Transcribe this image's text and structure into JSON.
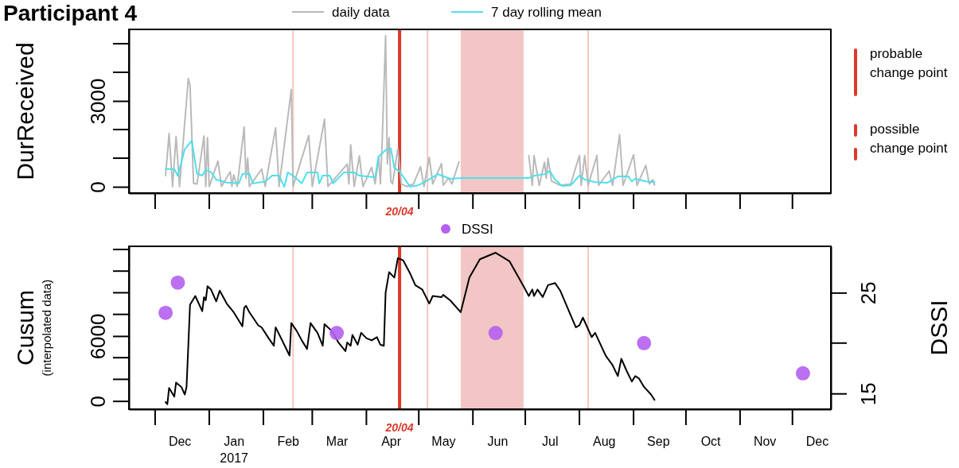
{
  "chart_data": [
    {
      "type": "line",
      "title": "Participant 4",
      "ylabel": "DurReceived",
      "xlim": [
        "2016-11-16",
        "2017-12-23"
      ],
      "ylim": [
        -220,
        5500
      ],
      "yticks": [
        0,
        3000
      ],
      "tick_labels": "y",
      "legend": "top",
      "line_style": "solid",
      "series": [
        {
          "name": "daily data",
          "color": "#bababa",
          "x": [
            "2016-12-07",
            "2016-12-09",
            "2016-12-11",
            "2016-12-13",
            "2016-12-15",
            "2016-12-20",
            "2016-12-21",
            "2016-12-23",
            "2016-12-25",
            "2016-12-29",
            "2016-12-30",
            "2016-12-31",
            "2017-01-01",
            "2017-01-06",
            "2017-01-08",
            "2017-01-13",
            "2017-01-14",
            "2017-01-15",
            "2017-01-17",
            "2017-01-21",
            "2017-01-22",
            "2017-01-23",
            "2017-01-24",
            "2017-01-31",
            "2017-02-02",
            "2017-02-08",
            "2017-02-10",
            "2017-02-17",
            "2017-02-18",
            "2017-02-27",
            "2017-03-01",
            "2017-03-08",
            "2017-03-10",
            "2017-03-21",
            "2017-03-22",
            "2017-03-23",
            "2017-03-25",
            "2017-03-28",
            "2017-03-30",
            "2017-04-04",
            "2017-04-06",
            "2017-04-08",
            "2017-04-09",
            "2017-04-10",
            "2017-04-12",
            "2017-04-13",
            "2017-04-14",
            "2017-04-15",
            "2017-04-16",
            "2017-04-19",
            "2017-04-21",
            "2017-04-24",
            "2017-04-28",
            "2017-05-02",
            "2017-05-04",
            "2017-05-07",
            "2017-05-09",
            "2017-05-14",
            "2017-05-15",
            "2017-05-18",
            "2017-05-20",
            "2017-05-24",
            "2017-06-12",
            "2017-07-03",
            "2017-07-05",
            "2017-07-06",
            "2017-07-09",
            "2017-07-12",
            "2017-07-13",
            "2017-07-14",
            "2017-07-16",
            "2017-07-21",
            "2017-07-27",
            "2017-08-01",
            "2017-08-02",
            "2017-08-04",
            "2017-08-06",
            "2017-08-11",
            "2017-08-12",
            "2017-08-18",
            "2017-08-20",
            "2017-08-24",
            "2017-08-26",
            "2017-09-01",
            "2017-09-03",
            "2017-09-08",
            "2017-09-10",
            "2017-09-12",
            "2017-09-13"
          ],
          "values": [
            390,
            1860,
            10,
            1750,
            10,
            3780,
            3550,
            120,
            100,
            1770,
            10,
            1720,
            10,
            900,
            10,
            530,
            10,
            420,
            10,
            2090,
            300,
            1000,
            10,
            620,
            10,
            2060,
            10,
            3400,
            10,
            1790,
            10,
            2360,
            10,
            790,
            100,
            1470,
            10,
            1080,
            10,
            680,
            100,
            1050,
            100,
            1500,
            5280,
            800,
            1720,
            200,
            100,
            1330,
            100,
            10,
            100,
            700,
            10,
            1030,
            100,
            810,
            50,
            300,
            100,
            870,
            null,
            1090,
            50,
            1090,
            50,
            860,
            300,
            1000,
            200,
            50,
            100,
            1090,
            50,
            1090,
            50,
            1090,
            50,
            550,
            50,
            1820,
            50,
            1120,
            50,
            750,
            100,
            250,
            60
          ]
        },
        {
          "name": "7 day rolling mean",
          "color": "#4fe0ea",
          "x": [
            "2016-12-07",
            "2016-12-12",
            "2016-12-14",
            "2016-12-18",
            "2016-12-22",
            "2016-12-25",
            "2016-12-28",
            "2016-12-30",
            "2017-01-02",
            "2017-01-05",
            "2017-01-11",
            "2017-01-18",
            "2017-01-20",
            "2017-01-24",
            "2017-01-26",
            "2017-02-02",
            "2017-02-06",
            "2017-02-10",
            "2017-02-13",
            "2017-02-15",
            "2017-02-18",
            "2017-02-23",
            "2017-02-26",
            "2017-03-04",
            "2017-03-05",
            "2017-03-07",
            "2017-03-11",
            "2017-03-13",
            "2017-03-19",
            "2017-03-25",
            "2017-03-28",
            "2017-04-06",
            "2017-04-08",
            "2017-04-12",
            "2017-04-15",
            "2017-04-17",
            "2017-04-20",
            "2017-04-26",
            "2017-05-01",
            "2017-05-06",
            "2017-05-12",
            "2017-05-19",
            "2017-05-26",
            "2017-07-03",
            "2017-07-07",
            "2017-07-13",
            "2017-07-15",
            "2017-07-18",
            "2017-07-22",
            "2017-07-27",
            "2017-08-01",
            "2017-08-04",
            "2017-08-10",
            "2017-08-17",
            "2017-08-23",
            "2017-08-29",
            "2017-08-31",
            "2017-09-02",
            "2017-09-08",
            "2017-09-13"
          ],
          "values": [
            620,
            620,
            380,
            1320,
            1610,
            460,
            390,
            590,
            520,
            250,
            150,
            120,
            450,
            450,
            120,
            180,
            390,
            390,
            0,
            500,
            390,
            120,
            500,
            500,
            120,
            390,
            390,
            120,
            500,
            500,
            390,
            330,
            1060,
            1280,
            1340,
            650,
            540,
            0,
            60,
            220,
            440,
            280,
            310,
            310,
            400,
            450,
            560,
            250,
            30,
            50,
            390,
            250,
            160,
            140,
            360,
            360,
            190,
            280,
            190,
            160
          ]
        }
      ],
      "ref_lines": [
        {
          "axis": "x",
          "value": "2017-04-20",
          "label": "20/04",
          "color": "#d93a2b"
        },
        {
          "axis": "x",
          "value": "2017-02-18",
          "color": "#f5c6c3"
        },
        {
          "axis": "x",
          "value": "2017-05-06",
          "color": "#f5c6c3"
        },
        {
          "axis": "x",
          "value": "2017-08-06",
          "color": "#f5c6c3"
        }
      ],
      "bands": [
        {
          "axis": "x",
          "from": "2017-05-25",
          "to": "2017-06-30",
          "color": "#f2c6c4"
        }
      ],
      "annotations": [
        "probable change point",
        "possible change point"
      ]
    },
    {
      "type": "line",
      "ylabel": "Cusum\n(interpolated data)",
      "y2label": "DSSI",
      "xlim": [
        "2016-11-16",
        "2017-12-23"
      ],
      "ylim": [
        -760,
        14290
      ],
      "yticks": [
        0,
        6000
      ],
      "y2lim": [
        13.44,
        29.6
      ],
      "y2ticks": [
        15,
        25
      ],
      "xticks": [
        {
          "value": "2016-12-15",
          "label": "Dec"
        },
        {
          "value": "2017-01-15",
          "label": "Jan\n2017"
        },
        {
          "value": "2017-02-15",
          "label": "Feb"
        },
        {
          "value": "2017-03-15",
          "label": "Mar"
        },
        {
          "value": "2017-04-15",
          "label": "Apr"
        },
        {
          "value": "2017-05-15",
          "label": "May"
        },
        {
          "value": "2017-06-15",
          "label": "Jun"
        },
        {
          "value": "2017-07-15",
          "label": "Jul"
        },
        {
          "value": "2017-08-15",
          "label": "Aug"
        },
        {
          "value": "2017-09-15",
          "label": "Sep"
        },
        {
          "value": "2017-10-15",
          "label": "Oct"
        },
        {
          "value": "2017-11-15",
          "label": "Nov"
        },
        {
          "value": "2017-12-15",
          "label": "Dec"
        }
      ],
      "legend": "top",
      "line_style": "solid",
      "series": [
        {
          "color": "#000000",
          "x": [
            "2016-12-07",
            "2016-12-08",
            "2016-12-09",
            "2016-12-12",
            "2016-12-13",
            "2016-12-16",
            "2016-12-18",
            "2016-12-19",
            "2016-12-21",
            "2016-12-24",
            "2016-12-28",
            "2016-12-29",
            "2016-12-30",
            "2016-12-31",
            "2017-01-02",
            "2017-01-05",
            "2017-01-07",
            "2017-01-11",
            "2017-01-15",
            "2017-01-20",
            "2017-01-21",
            "2017-01-22",
            "2017-01-24",
            "2017-01-29",
            "2017-01-31",
            "2017-02-04",
            "2017-02-07",
            "2017-02-08",
            "2017-02-09",
            "2017-02-16",
            "2017-02-17",
            "2017-02-20",
            "2017-02-23",
            "2017-02-26",
            "2017-02-28",
            "2017-03-04",
            "2017-03-07",
            "2017-03-08",
            "2017-03-12",
            "2017-03-16",
            "2017-03-20",
            "2017-03-21",
            "2017-03-23",
            "2017-03-24",
            "2017-03-27",
            "2017-03-29",
            "2017-04-01",
            "2017-04-04",
            "2017-04-07",
            "2017-04-09",
            "2017-04-11",
            "2017-04-12",
            "2017-04-14",
            "2017-04-17",
            "2017-04-19",
            "2017-04-22",
            "2017-04-26",
            "2017-04-29",
            "2017-05-03",
            "2017-05-07",
            "2017-05-09",
            "2017-05-14",
            "2017-05-15",
            "2017-05-19",
            "2017-05-25",
            "2017-05-30",
            "2017-06-05",
            "2017-06-14",
            "2017-06-22",
            "2017-06-30",
            "2017-07-03",
            "2017-07-05",
            "2017-07-06",
            "2017-07-08",
            "2017-07-11",
            "2017-07-14",
            "2017-07-18",
            "2017-07-21",
            "2017-07-26",
            "2017-07-30",
            "2017-08-01",
            "2017-08-03",
            "2017-08-08",
            "2017-08-10",
            "2017-08-16",
            "2017-08-20",
            "2017-08-23",
            "2017-08-25",
            "2017-08-28",
            "2017-08-31",
            "2017-09-02",
            "2017-09-04",
            "2017-09-07",
            "2017-09-11",
            "2017-09-13"
          ],
          "values": [
            -100,
            -300,
            1200,
            400,
            1700,
            1300,
            600,
            1300,
            8900,
            9700,
            8300,
            9600,
            9300,
            10600,
            10300,
            9200,
            10200,
            9000,
            8200,
            6900,
            8600,
            8800,
            8200,
            7000,
            6800,
            5800,
            5100,
            6800,
            6500,
            4200,
            7200,
            6500,
            5600,
            4800,
            7200,
            6300,
            5100,
            7100,
            6500,
            5400,
            4600,
            5400,
            5100,
            6100,
            5200,
            6300,
            5800,
            5600,
            5900,
            5200,
            5100,
            10000,
            11900,
            11400,
            13200,
            13000,
            11800,
            10700,
            10300,
            9000,
            9700,
            9600,
            9800,
            9300,
            8200,
            11400,
            13100,
            13700,
            12900,
            10600,
            9700,
            10300,
            9700,
            10300,
            9600,
            10700,
            10900,
            10200,
            8300,
            6800,
            7000,
            7700,
            5900,
            6300,
            4200,
            3300,
            2300,
            3900,
            2800,
            1800,
            2300,
            2100,
            1300,
            600,
            100
          ]
        },
        {
          "name": "DSSI",
          "type": "scatter",
          "axis": "y2",
          "marker": "circle",
          "color": "#b460f0",
          "x": [
            "2016-12-07",
            "2016-12-14",
            "2017-03-15",
            "2017-06-14",
            "2017-09-07",
            "2017-12-07"
          ],
          "values": [
            23,
            26,
            21,
            21,
            20,
            17
          ]
        }
      ],
      "ref_lines": [
        {
          "axis": "x",
          "value": "2017-04-20",
          "label": "20/04",
          "color": "#d93a2b"
        },
        {
          "axis": "x",
          "value": "2017-02-18",
          "color": "#f5c6c3"
        },
        {
          "axis": "x",
          "value": "2017-05-06",
          "color": "#f5c6c3"
        },
        {
          "axis": "x",
          "value": "2017-08-06",
          "color": "#f5c6c3"
        }
      ],
      "bands": [
        {
          "axis": "x",
          "from": "2017-05-25",
          "to": "2017-06-30",
          "color": "#f2c6c4"
        }
      ]
    }
  ]
}
